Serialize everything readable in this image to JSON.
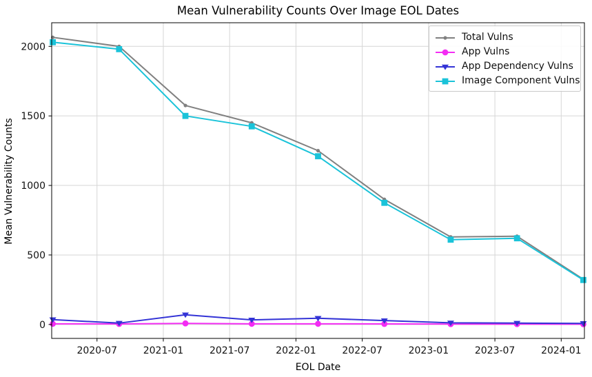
{
  "figure": {
    "title": "Mean Vulnerability Counts Over Image EOL Dates",
    "xlabel": "EOL Date",
    "ylabel": "Mean Vulnerability Counts"
  },
  "chart_data": {
    "type": "line",
    "title": "Mean Vulnerability Counts Over Image EOL Dates",
    "xlabel": "EOL Date",
    "ylabel": "Mean Vulnerability Counts",
    "x_dates": [
      "2020-03",
      "2020-09",
      "2021-03",
      "2021-09",
      "2022-03",
      "2022-09",
      "2023-03",
      "2023-09",
      "2024-03"
    ],
    "x_months": [
      0,
      6,
      12,
      18,
      24,
      30,
      36,
      42,
      48
    ],
    "series": [
      {
        "name": "Total Vulns",
        "color": "#808080",
        "marker": "dot",
        "values": [
          2065,
          2000,
          1575,
          1450,
          1250,
          900,
          630,
          635,
          325
        ]
      },
      {
        "name": "App Vulns",
        "color": "#f32cf3",
        "marker": "circle",
        "values": [
          5,
          4,
          8,
          5,
          5,
          4,
          3,
          3,
          2
        ]
      },
      {
        "name": "App Dependency Vulns",
        "color": "#3333d6",
        "marker": "triangle-down",
        "values": [
          35,
          10,
          70,
          33,
          45,
          28,
          12,
          10,
          8
        ]
      },
      {
        "name": "Image Component Vulns",
        "color": "#1ac3d9",
        "marker": "square",
        "values": [
          2030,
          1980,
          1500,
          1425,
          1210,
          875,
          610,
          620,
          320
        ]
      }
    ],
    "xticks_months": [
      4,
      10,
      16,
      22,
      28,
      34,
      40,
      46
    ],
    "xticks_labels": [
      "2020-07",
      "2021-01",
      "2021-07",
      "2022-01",
      "2022-07",
      "2023-01",
      "2023-07",
      "2024-01"
    ],
    "yticks": [
      0,
      500,
      1000,
      1500,
      2000
    ],
    "ylim": [
      -100,
      2170
    ],
    "xlim_months": [
      -0.1,
      48.1
    ],
    "grid": true,
    "legend_position": "upper right",
    "colors": {
      "grid": "#d6d6d6",
      "spine": "#000000",
      "text": "#111111"
    }
  }
}
